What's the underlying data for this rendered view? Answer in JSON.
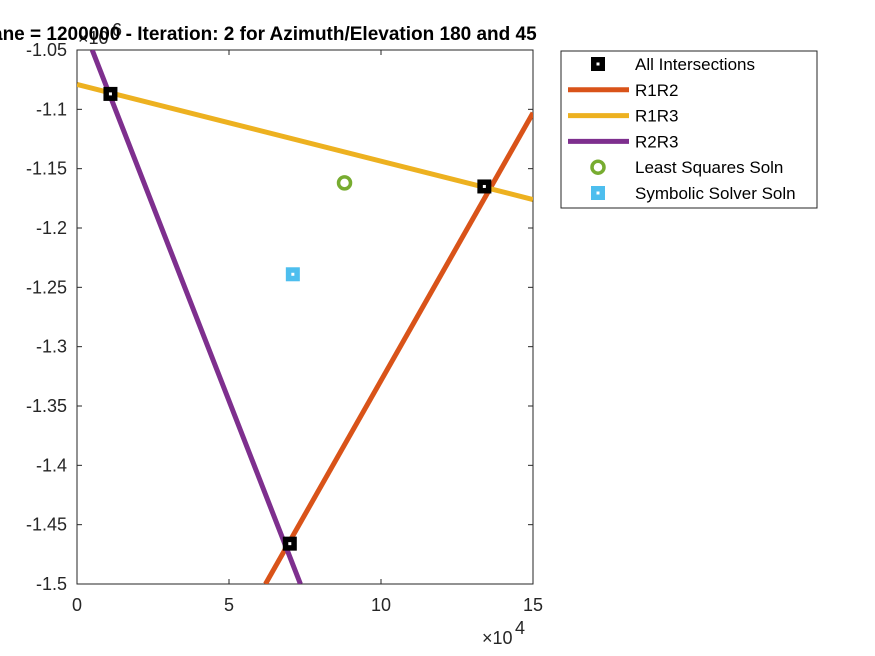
{
  "chart_data": {
    "type": "line",
    "title": "ane = 1200000 - Iteration: 2 for Azimuth/Elevation 180 and 45",
    "xlabel": "",
    "ylabel": "",
    "xlim": [
      0,
      15
    ],
    "ylim": [
      -1.5,
      -1.05
    ],
    "x_exponent_label": "×10",
    "x_exponent_power": "4",
    "y_exponent_label": "×10",
    "y_exponent_power": "6",
    "x_ticks": [
      0,
      5,
      10,
      15
    ],
    "x_tick_labels": [
      "0",
      "5",
      "10",
      "15"
    ],
    "y_ticks": [
      -1.05,
      -1.1,
      -1.15,
      -1.2,
      -1.25,
      -1.3,
      -1.35,
      -1.4,
      -1.45,
      -1.5
    ],
    "y_tick_labels": [
      "-1.05",
      "-1.1",
      "-1.15",
      "-1.2",
      "-1.25",
      "-1.3",
      "-1.35",
      "-1.4",
      "-1.45",
      "-1.5"
    ],
    "grid": false,
    "legend_position": "outside-top-right",
    "series": [
      {
        "name": "All Intersections",
        "kind": "marker",
        "marker": "square",
        "color": "#000000",
        "x": [
          1.1,
          13.4,
          7.0
        ],
        "y": [
          -1.087,
          -1.165,
          -1.466
        ]
      },
      {
        "name": "R1R2",
        "kind": "line",
        "color": "#D95319",
        "x": [
          6.2,
          15.0
        ],
        "y": [
          -1.5,
          -1.103
        ]
      },
      {
        "name": "R1R3",
        "kind": "line",
        "color": "#EDB120",
        "x": [
          0.0,
          15.0
        ],
        "y": [
          -1.079,
          -1.176
        ]
      },
      {
        "name": "R2R3",
        "kind": "line",
        "color": "#7E2F8E",
        "x": [
          0.5,
          7.35
        ],
        "y": [
          -1.05,
          -1.5
        ]
      },
      {
        "name": "Least Squares Soln",
        "kind": "marker",
        "marker": "circle",
        "color": "#77AC30",
        "x": [
          8.8
        ],
        "y": [
          -1.162
        ]
      },
      {
        "name": "Symbolic Solver Soln",
        "kind": "marker",
        "marker": "square",
        "color": "#4DBEEE",
        "x": [
          7.1
        ],
        "y": [
          -1.239
        ]
      }
    ]
  }
}
